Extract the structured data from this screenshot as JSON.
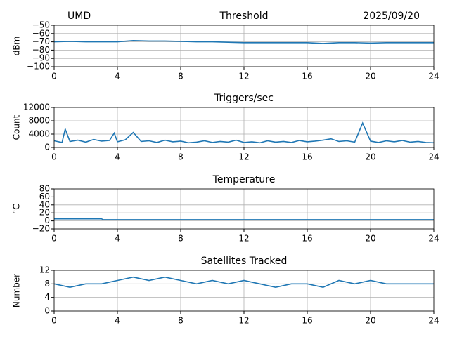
{
  "chart_data": [
    {
      "type": "line",
      "title": "Threshold",
      "annotations": [
        "UMD",
        "2025/09/20"
      ],
      "ylabel": "dBm",
      "x": [
        0,
        1,
        2,
        3,
        4,
        5,
        6,
        7,
        8,
        9,
        10,
        11,
        12,
        13,
        14,
        15,
        16,
        17,
        18,
        19,
        20,
        21,
        22,
        23,
        24
      ],
      "values": [
        -70,
        -69.5,
        -70,
        -70,
        -70,
        -68.5,
        -69,
        -69,
        -69.5,
        -70,
        -70,
        -70.5,
        -71,
        -71,
        -71,
        -71,
        -71,
        -72,
        -71,
        -71,
        -71.5,
        -71,
        -71,
        -71,
        -71
      ],
      "color": "#1f77b4",
      "xlim": [
        0,
        24
      ],
      "xticks": [
        0,
        4,
        8,
        12,
        16,
        20,
        24
      ],
      "ylim": [
        -100,
        -50
      ],
      "yticks": [
        {
          "value": -50,
          "label": "−50"
        },
        {
          "value": -60,
          "label": "−60"
        },
        {
          "value": -70,
          "label": "−70"
        },
        {
          "value": -80,
          "label": "−80"
        },
        {
          "value": -90,
          "label": "−90"
        },
        {
          "value": -100,
          "label": "−100"
        }
      ],
      "grid": true
    },
    {
      "type": "line",
      "title": "Triggers/sec",
      "ylabel": "Count",
      "x": [
        0,
        0.5,
        0.7,
        1,
        1.5,
        2,
        2.5,
        3,
        3.5,
        3.8,
        4,
        4.5,
        5,
        5.5,
        6,
        6.5,
        7,
        7.5,
        8,
        8.5,
        9,
        9.5,
        10,
        10.5,
        11,
        11.5,
        12,
        12.5,
        13,
        13.5,
        14,
        14.5,
        15,
        15.5,
        16,
        16.5,
        17,
        17.5,
        18,
        18.5,
        19,
        19.5,
        20,
        20.5,
        21,
        21.5,
        22,
        22.5,
        23,
        23.5,
        24
      ],
      "values": [
        2000,
        1500,
        5500,
        1800,
        2200,
        1600,
        2400,
        1900,
        2100,
        4300,
        1700,
        2300,
        4500,
        1800,
        2000,
        1500,
        2200,
        1700,
        1900,
        1400,
        1600,
        2000,
        1500,
        1800,
        1600,
        2200,
        1500,
        1700,
        1400,
        2000,
        1600,
        1800,
        1500,
        2100,
        1700,
        1900,
        2200,
        2600,
        1800,
        2000,
        1600,
        7300,
        1900,
        1500,
        2000,
        1700,
        2100,
        1600,
        1800,
        1500,
        1400
      ],
      "color": "#1f77b4",
      "xlim": [
        0,
        24
      ],
      "xticks": [
        0,
        4,
        8,
        12,
        16,
        20,
        24
      ],
      "ylim": [
        0,
        12000
      ],
      "yticks": [
        0,
        4000,
        8000,
        12000
      ],
      "grid": true
    },
    {
      "type": "line",
      "title": "Temperature",
      "ylabel": "°C",
      "x": [
        0,
        3,
        3.1,
        24
      ],
      "values": [
        5,
        5,
        3,
        3
      ],
      "color": "#1f77b4",
      "xlim": [
        0,
        24
      ],
      "xticks": [
        0,
        4,
        8,
        12,
        16,
        20,
        24
      ],
      "ylim": [
        -20,
        80
      ],
      "yticks": [
        {
          "value": -20,
          "label": "−20"
        },
        0,
        20,
        40,
        60,
        80
      ],
      "grid": true
    },
    {
      "type": "line",
      "title": "Satellites Tracked",
      "ylabel": "Number",
      "x": [
        0,
        1,
        2,
        3,
        4,
        5,
        6,
        7,
        8,
        9,
        10,
        11,
        12,
        13,
        14,
        15,
        16,
        17,
        18,
        19,
        20,
        21,
        22,
        23,
        24
      ],
      "values": [
        8,
        7,
        8,
        8,
        9,
        10,
        9,
        10,
        9,
        8,
        9,
        8,
        9,
        8,
        7,
        8,
        8,
        7,
        9,
        8,
        9,
        8,
        8,
        8,
        8
      ],
      "color": "#1f77b4",
      "xlim": [
        0,
        24
      ],
      "xticks": [
        0,
        4,
        8,
        12,
        16,
        20,
        24
      ],
      "ylim": [
        0,
        12
      ],
      "yticks": [
        0,
        4,
        8,
        12
      ],
      "grid": true
    }
  ]
}
